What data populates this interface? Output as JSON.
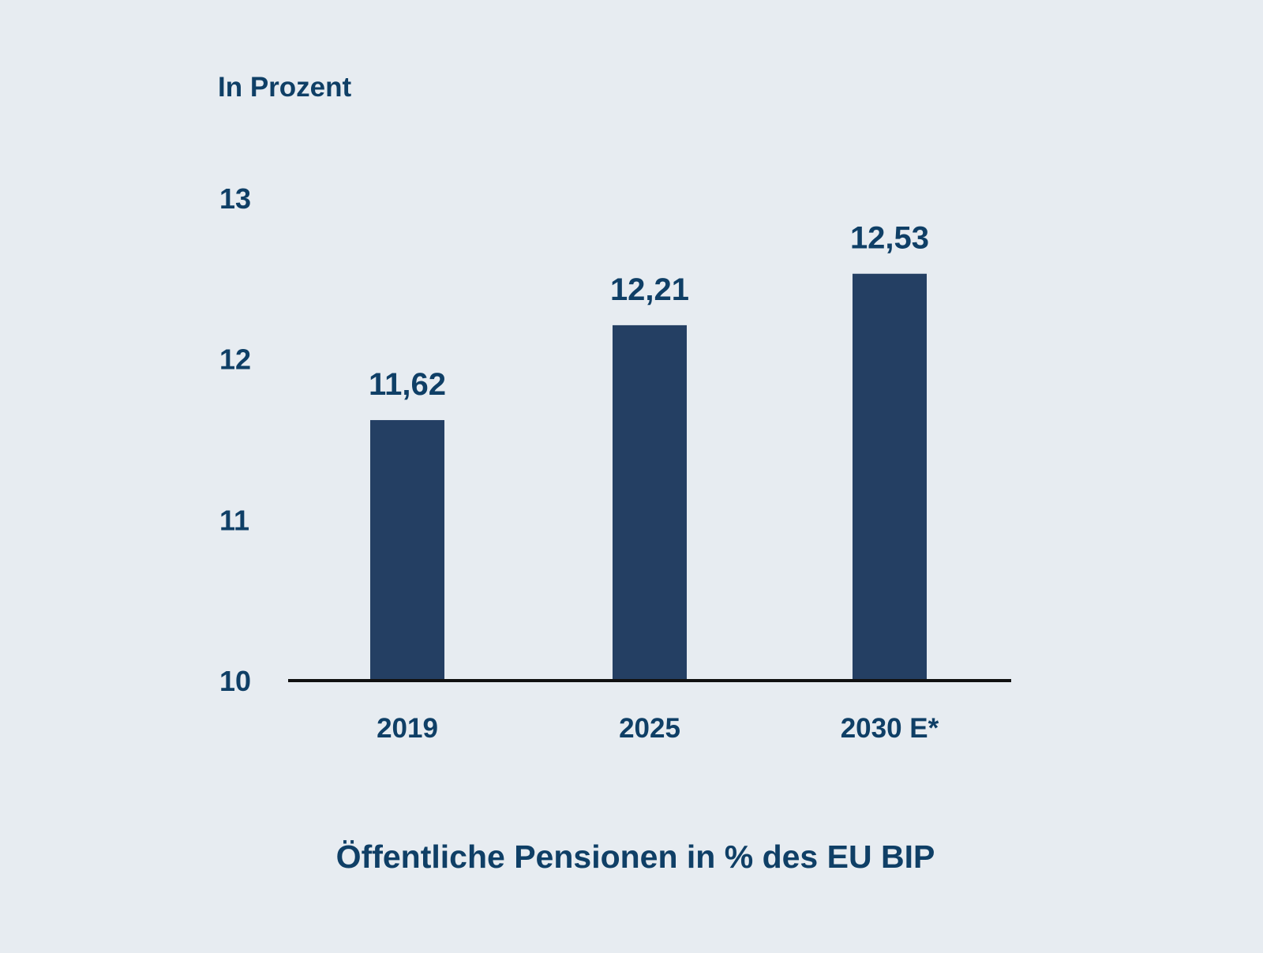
{
  "chart_data": {
    "type": "bar",
    "title": "Öffentliche Pensionen in % des EU BIP",
    "ylabel": "In Prozent",
    "xlabel": "",
    "categories": [
      "2019",
      "2025",
      "2030 E*"
    ],
    "values": [
      11.62,
      12.21,
      12.53
    ],
    "value_labels": [
      "11,62",
      "12,21",
      "12,53"
    ],
    "ylim": [
      10,
      13
    ],
    "yticks": [
      "10",
      "11",
      "12",
      "13"
    ],
    "grid": false,
    "legend": "none",
    "colors": {
      "bar": "#243f63",
      "text": "#0f3f66",
      "background": "#e7ecf1",
      "axis": "#111111"
    }
  }
}
